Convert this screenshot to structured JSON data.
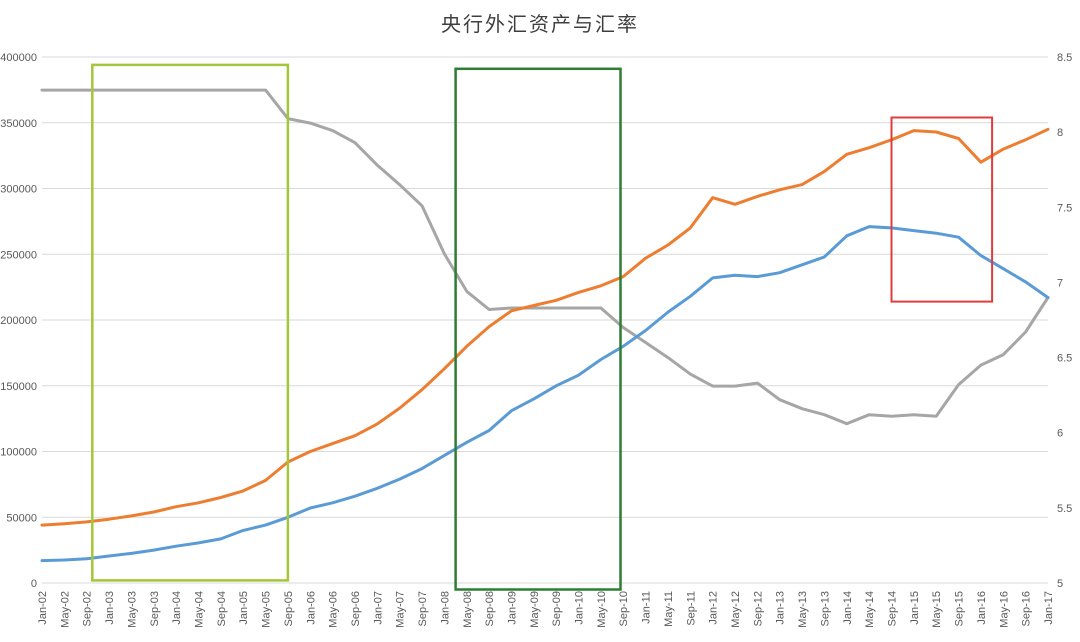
{
  "chart_data": {
    "type": "line",
    "title": "央行外汇资产与汇率",
    "xlabel": "",
    "ylabel": "",
    "legend": "none",
    "grid": true,
    "x_tick_rotation": -90,
    "categories": [
      "Jan-02",
      "May-02",
      "Sep-02",
      "Jan-03",
      "May-03",
      "Sep-03",
      "Jan-04",
      "May-04",
      "Sep-04",
      "Jan-05",
      "May-05",
      "Sep-05",
      "Jan-06",
      "May-06",
      "Sep-06",
      "Jan-07",
      "May-07",
      "Sep-07",
      "Jan-08",
      "May-08",
      "Sep-08",
      "Jan-09",
      "May-09",
      "Sep-09",
      "Jan-10",
      "May-10",
      "Sep-10",
      "Jan-11",
      "May-11",
      "Sep-11",
      "Jan-12",
      "May-12",
      "Sep-12",
      "Jan-13",
      "May-13",
      "Sep-13",
      "Jan-14",
      "May-14",
      "Sep-14",
      "Jan-15",
      "May-15",
      "Sep-15",
      "Jan-16",
      "May-16",
      "Sep-16",
      "Jan-17"
    ],
    "y_axis_left": {
      "min": 0,
      "max": 400000,
      "step": 50000,
      "tick_labels": [
        "400000",
        "350000",
        "300000",
        "250000",
        "200000",
        "150000",
        "100000",
        "50000",
        "0"
      ]
    },
    "y_axis_right": {
      "min": 5,
      "max": 8.5,
      "step": 0.5,
      "tick_labels": [
        "8.5",
        "8",
        "7.5",
        "7",
        "6.5",
        "6",
        "5.5",
        "5"
      ]
    },
    "series": [
      {
        "id": "exchange-rate-gray",
        "axis": "right",
        "color": "#A6A6A6",
        "values": [
          8.28,
          8.28,
          8.28,
          8.28,
          8.28,
          8.28,
          8.28,
          8.28,
          8.28,
          8.28,
          8.28,
          8.09,
          8.06,
          8.01,
          7.93,
          7.78,
          7.65,
          7.51,
          7.19,
          6.94,
          6.82,
          6.83,
          6.83,
          6.83,
          6.83,
          6.83,
          6.7,
          6.6,
          6.5,
          6.39,
          6.31,
          6.31,
          6.33,
          6.22,
          6.16,
          6.12,
          6.06,
          6.12,
          6.11,
          6.12,
          6.11,
          6.32,
          6.45,
          6.52,
          6.67,
          6.9
        ]
      },
      {
        "id": "fx-assets-blue",
        "axis": "left",
        "color": "#5B9BD5",
        "values": [
          17000,
          17500,
          18500,
          20500,
          22500,
          25000,
          28000,
          30500,
          33500,
          40000,
          44000,
          50000,
          57000,
          61000,
          66000,
          72000,
          79000,
          87000,
          97000,
          107000,
          116000,
          131000,
          140000,
          150000,
          158000,
          170000,
          180000,
          192000,
          206000,
          218000,
          232000,
          234000,
          233000,
          236000,
          242000,
          248000,
          264000,
          271000,
          270000,
          268000,
          266000,
          263000,
          249000,
          239000,
          229000,
          217000
        ]
      },
      {
        "id": "fx-assets-orange",
        "axis": "left",
        "color": "#ED7D31",
        "values": [
          44000,
          45000,
          46500,
          48500,
          51000,
          54000,
          58000,
          61000,
          65000,
          70000,
          78000,
          92000,
          100000,
          106000,
          112000,
          121000,
          133000,
          147000,
          163000,
          180000,
          195000,
          207000,
          211000,
          215000,
          221000,
          226000,
          233000,
          247000,
          257000,
          270000,
          293000,
          288000,
          294000,
          299000,
          303000,
          313000,
          326000,
          331000,
          337000,
          344000,
          343000,
          338000,
          320000,
          330000,
          337000,
          345000
        ]
      }
    ],
    "annotations": [
      {
        "id": "highlight-box-yellowgreen",
        "shape": "rect",
        "color": "#A4C639",
        "stroke_width": 2.5,
        "month_start": 9,
        "month_end": 44,
        "val_top": 394000,
        "val_bottom": 2000
      },
      {
        "id": "highlight-box-darkgreen",
        "shape": "rect",
        "color": "#2E7D32",
        "stroke_width": 2.5,
        "month_start": 74,
        "month_end": 103.5,
        "val_top": 391000,
        "val_bottom": -5000
      },
      {
        "id": "highlight-box-red",
        "shape": "rect",
        "color": "#E03C3C",
        "stroke_width": 2,
        "month_start": 152,
        "month_end": 170,
        "val_top": 354000,
        "val_bottom": 214000
      }
    ],
    "colors": {
      "grid": "#D9D9D9",
      "axis_label": "#595959",
      "title": "#3F3F3F",
      "background": "#FFFFFF"
    }
  }
}
